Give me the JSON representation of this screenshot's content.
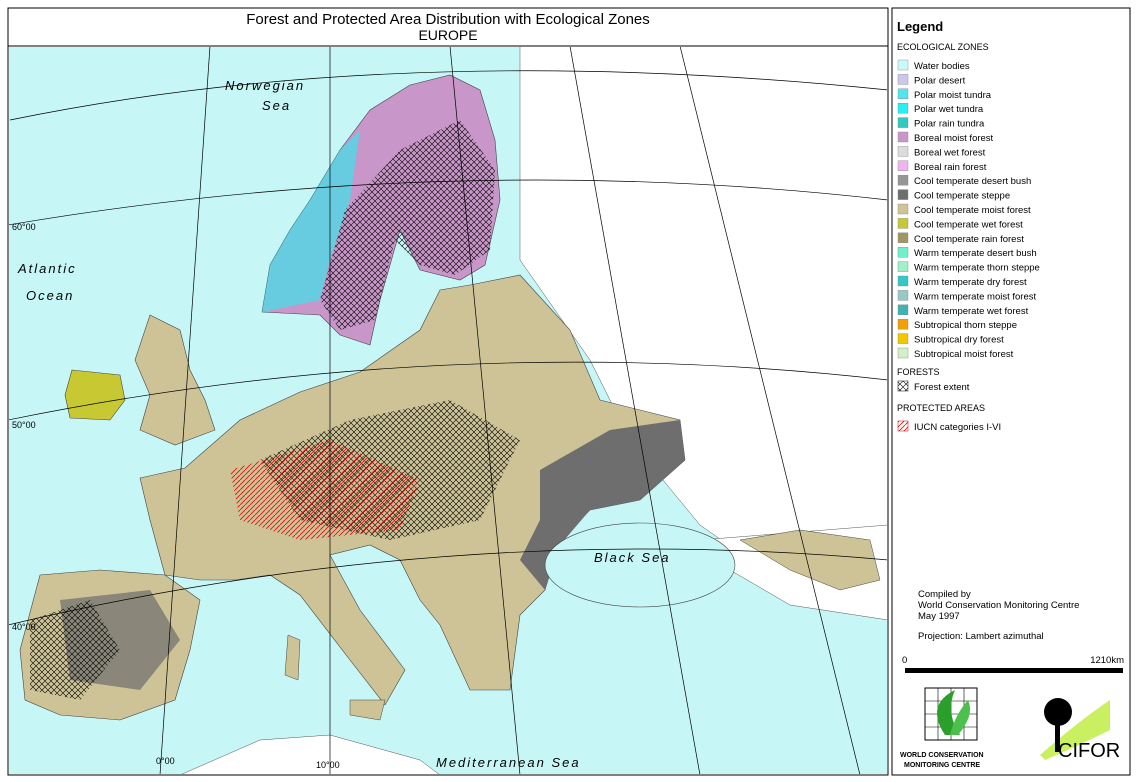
{
  "header": {
    "title": "Forest and Protected Area Distribution with Ecological Zones",
    "subtitle": "EUROPE"
  },
  "map_labels": {
    "norwegian": "Norwegian",
    "sea": "Sea",
    "atlantic": "Atlantic",
    "ocean": "Ocean",
    "black_sea": "Black Sea",
    "mediterranean": "Mediterranean Sea"
  },
  "graticule": {
    "lat60": "60°00",
    "lat50": "50°00",
    "lat40": "40°00",
    "lon0": "0°00",
    "lon10": "10°00"
  },
  "legend": {
    "title": "Legend",
    "zones_heading": "ECOLOGICAL ZONES",
    "zones": [
      {
        "name": "Water bodies",
        "color": "#c8fafa"
      },
      {
        "name": "Polar desert",
        "color": "#c8c8f0"
      },
      {
        "name": "Polar moist tundra",
        "color": "#50e6f0"
      },
      {
        "name": "Polar wet tundra",
        "color": "#28f0f0"
      },
      {
        "name": "Polar rain tundra",
        "color": "#30c8c0"
      },
      {
        "name": "Boreal moist forest",
        "color": "#c896c8"
      },
      {
        "name": "Boreal wet forest",
        "color": "#dcdcdc"
      },
      {
        "name": "Boreal rain forest",
        "color": "#f0b4f0"
      },
      {
        "name": "Cool temperate desert bush",
        "color": "#969696"
      },
      {
        "name": "Cool temperate steppe",
        "color": "#6e6e6e"
      },
      {
        "name": "Cool temperate moist forest",
        "color": "#cdc396"
      },
      {
        "name": "Cool temperate wet forest",
        "color": "#c8c832"
      },
      {
        "name": "Cool temperate rain forest",
        "color": "#a09664"
      },
      {
        "name": "Warm temperate desert bush",
        "color": "#6ef0c8"
      },
      {
        "name": "Warm temperate thorn steppe",
        "color": "#a0f0c8"
      },
      {
        "name": "Warm temperate dry forest",
        "color": "#32c8c8"
      },
      {
        "name": "Warm temperate moist forest",
        "color": "#96c8c8"
      },
      {
        "name": "Warm temperate wet forest",
        "color": "#3cb4b4"
      },
      {
        "name": "Subtropical thorn steppe",
        "color": "#f0a000"
      },
      {
        "name": "Subtropical dry forest",
        "color": "#f0c800"
      },
      {
        "name": "Subtropical moist forest",
        "color": "#d2f0c8"
      }
    ],
    "forests_heading": "FORESTS",
    "forest_item": "Forest extent",
    "protected_heading": "PROTECTED AREAS",
    "protected_item": "IUCN categories I-VI"
  },
  "credits": {
    "line1": "Compiled by",
    "line2": "World Conservation Monitoring Centre",
    "line3": "May 1997",
    "projection": "Projection: Lambert azimuthal"
  },
  "scale": {
    "start": "0",
    "end": "1210km"
  },
  "logos": {
    "wcmc1": "WORLD CONSERVATION",
    "wcmc2": "MONITORING CENTRE",
    "cifor": "CIFOR"
  }
}
